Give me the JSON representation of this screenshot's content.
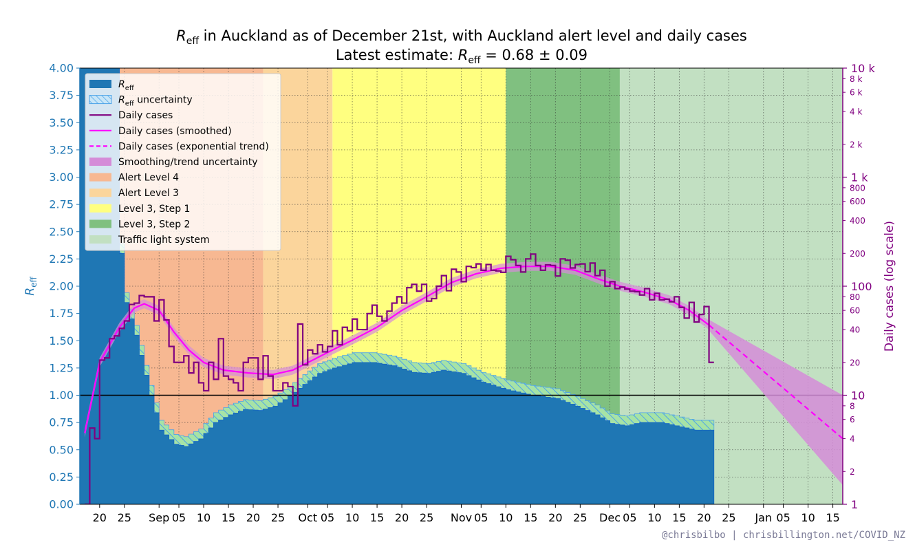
{
  "colors": {
    "reff": "#1f77b4",
    "reff_uncertainty_fill": "#a6e3a6",
    "reff_uncertainty_hatch": "#4da3e8",
    "daily_cases": "#800080",
    "smoothed": "#ff00ff",
    "trend_uncertainty": "#d58cd8",
    "alert4": "#f7b892",
    "alert3": "#fbd59c",
    "step1": "#ffff80",
    "step2": "#80c080",
    "traffic": "#c2e0c2",
    "left_axis": "#1f77b4",
    "right_axis": "#800080"
  },
  "chart_data": {
    "type": "line",
    "title_prefix": "R",
    "title_sub": "eff",
    "title_rest": " in Auckland as of December 21st, with Auckland alert level and daily cases",
    "subtitle_prefix": "Latest estimate: ",
    "subtitle_r": "R",
    "subtitle_sub": "eff",
    "subtitle_rest": " = 0.68 ± 0.09",
    "ylabel_left_main": "R",
    "ylabel_left_sub": "eff",
    "ylabel_right": "Daily cases (log scale)",
    "credit": "@chrisbilbo | chrisbillington.net/COVID_NZ",
    "x_range": [
      "2021-08-16",
      "2022-01-17"
    ],
    "ylim_left": [
      0,
      4
    ],
    "ylim_right": [
      1,
      10000
    ],
    "right_scale": "log",
    "grid": "dotted",
    "legend_placement": "top-left",
    "yticks_left": [
      "0.00",
      "0.25",
      "0.50",
      "0.75",
      "1.00",
      "1.25",
      "1.50",
      "1.75",
      "2.00",
      "2.25",
      "2.50",
      "2.75",
      "3.00",
      "3.25",
      "3.50",
      "3.75",
      "4.00"
    ],
    "yticks_right_major": [
      {
        "value": 1,
        "label": "1"
      },
      {
        "value": 10,
        "label": "10"
      },
      {
        "value": 100,
        "label": "100"
      },
      {
        "value": 1000,
        "label": "1 k"
      },
      {
        "value": 10000,
        "label": "10 k"
      }
    ],
    "yticks_right_minor": [
      {
        "value": 2,
        "label": "2"
      },
      {
        "value": 4,
        "label": "4"
      },
      {
        "value": 6,
        "label": "6"
      },
      {
        "value": 8,
        "label": "8"
      },
      {
        "value": 20,
        "label": "20"
      },
      {
        "value": 40,
        "label": "40"
      },
      {
        "value": 60,
        "label": "60"
      },
      {
        "value": 80,
        "label": "80"
      },
      {
        "value": 200,
        "label": "200"
      },
      {
        "value": 400,
        "label": "400"
      },
      {
        "value": 600,
        "label": "600"
      },
      {
        "value": 800,
        "label": "800"
      },
      {
        "value": 2000,
        "label": "2 k"
      },
      {
        "value": 4000,
        "label": "4 k"
      },
      {
        "value": 6000,
        "label": "6 k"
      },
      {
        "value": 8000,
        "label": "8 k"
      }
    ],
    "xticks": [
      {
        "date": "2021-08-20",
        "label": "20"
      },
      {
        "date": "2021-08-25",
        "label": "25"
      },
      {
        "date": "2021-09-01",
        "label": "Sep"
      },
      {
        "date": "2021-09-05",
        "label": "05"
      },
      {
        "date": "2021-09-10",
        "label": "10"
      },
      {
        "date": "2021-09-15",
        "label": "15"
      },
      {
        "date": "2021-09-20",
        "label": "20"
      },
      {
        "date": "2021-09-25",
        "label": "25"
      },
      {
        "date": "2021-10-01",
        "label": "Oct"
      },
      {
        "date": "2021-10-05",
        "label": "05"
      },
      {
        "date": "2021-10-10",
        "label": "10"
      },
      {
        "date": "2021-10-15",
        "label": "15"
      },
      {
        "date": "2021-10-20",
        "label": "20"
      },
      {
        "date": "2021-10-25",
        "label": "25"
      },
      {
        "date": "2021-11-01",
        "label": "Nov"
      },
      {
        "date": "2021-11-05",
        "label": "05"
      },
      {
        "date": "2021-11-10",
        "label": "10"
      },
      {
        "date": "2021-11-15",
        "label": "15"
      },
      {
        "date": "2021-11-20",
        "label": "20"
      },
      {
        "date": "2021-11-25",
        "label": "25"
      },
      {
        "date": "2021-12-01",
        "label": "Dec"
      },
      {
        "date": "2021-12-05",
        "label": "05"
      },
      {
        "date": "2021-12-10",
        "label": "10"
      },
      {
        "date": "2021-12-15",
        "label": "15"
      },
      {
        "date": "2021-12-20",
        "label": "20"
      },
      {
        "date": "2021-12-25",
        "label": "25"
      },
      {
        "date": "2022-01-01",
        "label": "Jan"
      },
      {
        "date": "2022-01-05",
        "label": "05"
      },
      {
        "date": "2022-01-10",
        "label": "10"
      },
      {
        "date": "2022-01-15",
        "label": "15"
      }
    ],
    "alert_periods": [
      {
        "name": "Alert Level 4",
        "start": "2021-08-17",
        "end": "2021-09-22",
        "color_key": "alert4"
      },
      {
        "name": "Alert Level 3",
        "start": "2021-09-22",
        "end": "2021-10-06",
        "color_key": "alert3"
      },
      {
        "name": "Level 3, Step 1",
        "start": "2021-10-06",
        "end": "2021-11-10",
        "color_key": "step1"
      },
      {
        "name": "Level 3, Step 2",
        "start": "2021-11-10",
        "end": "2021-12-03",
        "color_key": "step2"
      },
      {
        "name": "Traffic light system",
        "start": "2021-12-03",
        "end": "2022-01-17",
        "color_key": "traffic"
      }
    ],
    "reff_anchors": [
      [
        "2021-08-16",
        4.0
      ],
      [
        "2021-08-23",
        4.0
      ],
      [
        "2021-08-24",
        2.3
      ],
      [
        "2021-08-25",
        1.85
      ],
      [
        "2021-08-27",
        1.55
      ],
      [
        "2021-08-30",
        1.0
      ],
      [
        "2021-09-01",
        0.68
      ],
      [
        "2021-09-04",
        0.55
      ],
      [
        "2021-09-06",
        0.53
      ],
      [
        "2021-09-09",
        0.6
      ],
      [
        "2021-09-12",
        0.75
      ],
      [
        "2021-09-15",
        0.82
      ],
      [
        "2021-09-18",
        0.87
      ],
      [
        "2021-09-21",
        0.86
      ],
      [
        "2021-09-24",
        0.9
      ],
      [
        "2021-09-27",
        0.99
      ],
      [
        "2021-09-30",
        1.1
      ],
      [
        "2021-10-03",
        1.2
      ],
      [
        "2021-10-06",
        1.25
      ],
      [
        "2021-10-10",
        1.3
      ],
      [
        "2021-10-14",
        1.3
      ],
      [
        "2021-10-18",
        1.27
      ],
      [
        "2021-10-22",
        1.21
      ],
      [
        "2021-10-25",
        1.2
      ],
      [
        "2021-10-28",
        1.23
      ],
      [
        "2021-11-01",
        1.2
      ],
      [
        "2021-11-05",
        1.12
      ],
      [
        "2021-11-10",
        1.05
      ],
      [
        "2021-11-15",
        1.0
      ],
      [
        "2021-11-20",
        0.97
      ],
      [
        "2021-11-24",
        0.9
      ],
      [
        "2021-11-28",
        0.82
      ],
      [
        "2021-12-01",
        0.74
      ],
      [
        "2021-12-04",
        0.72
      ],
      [
        "2021-12-07",
        0.75
      ],
      [
        "2021-12-11",
        0.75
      ],
      [
        "2021-12-15",
        0.71
      ],
      [
        "2021-12-18",
        0.68
      ],
      [
        "2021-12-21",
        0.68
      ]
    ],
    "reff_upper_offset": 0.09,
    "daily_cases_anchors": [
      [
        "2021-08-17",
        1
      ],
      [
        "2021-08-18",
        5
      ],
      [
        "2021-08-19",
        4
      ],
      [
        "2021-08-20",
        21
      ],
      [
        "2021-08-21",
        22
      ],
      [
        "2021-08-22",
        33
      ],
      [
        "2021-08-23",
        35
      ],
      [
        "2021-08-24",
        41
      ],
      [
        "2021-08-25",
        48
      ],
      [
        "2021-08-26",
        68
      ],
      [
        "2021-08-27",
        70
      ],
      [
        "2021-08-28",
        82
      ],
      [
        "2021-08-29",
        80
      ],
      [
        "2021-08-30",
        80
      ],
      [
        "2021-08-31",
        48
      ],
      [
        "2021-09-01",
        75
      ],
      [
        "2021-09-02",
        49
      ],
      [
        "2021-09-03",
        28
      ],
      [
        "2021-09-04",
        20
      ],
      [
        "2021-09-05",
        20
      ],
      [
        "2021-09-06",
        23
      ],
      [
        "2021-09-07",
        16
      ],
      [
        "2021-09-08",
        20
      ],
      [
        "2021-09-09",
        13
      ],
      [
        "2021-09-10",
        11
      ],
      [
        "2021-09-11",
        20
      ],
      [
        "2021-09-12",
        14
      ],
      [
        "2021-09-13",
        33
      ],
      [
        "2021-09-14",
        15
      ],
      [
        "2021-09-15",
        14
      ],
      [
        "2021-09-16",
        13
      ],
      [
        "2021-09-17",
        11
      ],
      [
        "2021-09-18",
        20
      ],
      [
        "2021-09-19",
        22
      ],
      [
        "2021-09-20",
        22
      ],
      [
        "2021-09-21",
        14
      ],
      [
        "2021-09-22",
        23
      ],
      [
        "2021-09-23",
        15
      ],
      [
        "2021-09-24",
        11
      ],
      [
        "2021-09-25",
        11
      ],
      [
        "2021-09-26",
        13
      ],
      [
        "2021-09-27",
        12
      ],
      [
        "2021-09-28",
        8
      ],
      [
        "2021-09-29",
        45
      ],
      [
        "2021-09-30",
        19
      ],
      [
        "2021-10-01",
        26
      ],
      [
        "2021-10-02",
        24
      ],
      [
        "2021-10-03",
        29
      ],
      [
        "2021-10-04",
        25
      ],
      [
        "2021-10-05",
        28
      ],
      [
        "2021-10-06",
        39
      ],
      [
        "2021-10-07",
        29
      ],
      [
        "2021-10-08",
        42
      ],
      [
        "2021-10-09",
        39
      ],
      [
        "2021-10-10",
        50
      ],
      [
        "2021-10-11",
        40
      ],
      [
        "2021-10-12",
        40
      ],
      [
        "2021-10-13",
        56
      ],
      [
        "2021-10-14",
        67
      ],
      [
        "2021-10-15",
        53
      ],
      [
        "2021-10-16",
        48
      ],
      [
        "2021-10-17",
        59
      ],
      [
        "2021-10-18",
        70
      ],
      [
        "2021-10-19",
        80
      ],
      [
        "2021-10-20",
        70
      ],
      [
        "2021-10-21",
        97
      ],
      [
        "2021-10-22",
        104
      ],
      [
        "2021-10-23",
        90
      ],
      [
        "2021-10-24",
        104
      ],
      [
        "2021-10-25",
        73
      ],
      [
        "2021-10-26",
        77
      ],
      [
        "2021-10-27",
        100
      ],
      [
        "2021-10-28",
        125
      ],
      [
        "2021-10-29",
        91
      ],
      [
        "2021-10-30",
        143
      ],
      [
        "2021-10-31",
        135
      ],
      [
        "2021-11-01",
        110
      ],
      [
        "2021-11-02",
        152
      ],
      [
        "2021-11-03",
        148
      ],
      [
        "2021-11-04",
        160
      ],
      [
        "2021-11-05",
        140
      ],
      [
        "2021-11-06",
        158
      ],
      [
        "2021-11-07",
        140
      ],
      [
        "2021-11-08",
        138
      ],
      [
        "2021-11-09",
        134
      ],
      [
        "2021-11-10",
        188
      ],
      [
        "2021-11-11",
        175
      ],
      [
        "2021-11-12",
        155
      ],
      [
        "2021-11-13",
        135
      ],
      [
        "2021-11-14",
        178
      ],
      [
        "2021-11-15",
        197
      ],
      [
        "2021-11-16",
        155
      ],
      [
        "2021-11-17",
        140
      ],
      [
        "2021-11-18",
        157
      ],
      [
        "2021-11-19",
        155
      ],
      [
        "2021-11-20",
        124
      ],
      [
        "2021-11-21",
        178
      ],
      [
        "2021-11-22",
        173
      ],
      [
        "2021-11-23",
        147
      ],
      [
        "2021-11-24",
        158
      ],
      [
        "2021-11-25",
        160
      ],
      [
        "2021-11-26",
        136
      ],
      [
        "2021-11-27",
        163
      ],
      [
        "2021-11-28",
        125
      ],
      [
        "2021-11-29",
        140
      ],
      [
        "2021-11-30",
        100
      ],
      [
        "2021-12-01",
        110
      ],
      [
        "2021-12-02",
        95
      ],
      [
        "2021-12-03",
        98
      ],
      [
        "2021-12-04",
        94
      ],
      [
        "2021-12-05",
        90
      ],
      [
        "2021-12-06",
        89
      ],
      [
        "2021-12-07",
        83
      ],
      [
        "2021-12-08",
        95
      ],
      [
        "2021-12-09",
        75
      ],
      [
        "2021-12-10",
        86
      ],
      [
        "2021-12-11",
        75
      ],
      [
        "2021-12-12",
        76
      ],
      [
        "2021-12-13",
        72
      ],
      [
        "2021-12-14",
        80
      ],
      [
        "2021-12-15",
        64
      ],
      [
        "2021-12-16",
        51
      ],
      [
        "2021-12-17",
        71
      ],
      [
        "2021-12-18",
        47
      ],
      [
        "2021-12-19",
        55
      ],
      [
        "2021-12-20",
        65
      ],
      [
        "2021-12-21",
        20
      ]
    ],
    "smoothed_anchors": [
      [
        "2021-08-17",
        4.5
      ],
      [
        "2021-08-20",
        20
      ],
      [
        "2021-08-24",
        42
      ],
      [
        "2021-08-27",
        63
      ],
      [
        "2021-08-29",
        69
      ],
      [
        "2021-09-01",
        60
      ],
      [
        "2021-09-04",
        38
      ],
      [
        "2021-09-07",
        26
      ],
      [
        "2021-09-10",
        20
      ],
      [
        "2021-09-14",
        17
      ],
      [
        "2021-09-19",
        16
      ],
      [
        "2021-09-24",
        15.5
      ],
      [
        "2021-09-28",
        17
      ],
      [
        "2021-10-02",
        21
      ],
      [
        "2021-10-06",
        26
      ],
      [
        "2021-10-10",
        32
      ],
      [
        "2021-10-15",
        42
      ],
      [
        "2021-10-20",
        60
      ],
      [
        "2021-10-25",
        80
      ],
      [
        "2021-10-30",
        108
      ],
      [
        "2021-11-04",
        130
      ],
      [
        "2021-11-09",
        146
      ],
      [
        "2021-11-14",
        152
      ],
      [
        "2021-11-19",
        152
      ],
      [
        "2021-11-24",
        140
      ],
      [
        "2021-11-29",
        115
      ],
      [
        "2021-12-03",
        100
      ],
      [
        "2021-12-08",
        88
      ],
      [
        "2021-12-13",
        75
      ],
      [
        "2021-12-17",
        60
      ],
      [
        "2021-12-21",
        44
      ]
    ],
    "trend_anchors": [
      [
        "2021-12-21",
        44
      ],
      [
        "2022-01-17",
        4
      ]
    ],
    "trend_uncertainty_end": [
      1.5,
      10
    ]
  },
  "legend": [
    {
      "key": "reff",
      "label_main": "R",
      "label_sub": "eff",
      "label_rest": ""
    },
    {
      "key": "reff_unc",
      "label_main": "R",
      "label_sub": "eff",
      "label_rest": " uncertainty"
    },
    {
      "key": "cases",
      "label_main": "Daily cases",
      "label_sub": "",
      "label_rest": ""
    },
    {
      "key": "smoothed",
      "label_main": "Daily cases (smoothed)",
      "label_sub": "",
      "label_rest": ""
    },
    {
      "key": "trend",
      "label_main": "Daily cases (exponential trend)",
      "label_sub": "",
      "label_rest": ""
    },
    {
      "key": "trend_unc",
      "label_main": "Smoothing/trend uncertainty",
      "label_sub": "",
      "label_rest": ""
    },
    {
      "key": "alert4",
      "label_main": "Alert Level 4",
      "label_sub": "",
      "label_rest": ""
    },
    {
      "key": "alert3",
      "label_main": "Alert Level 3",
      "label_sub": "",
      "label_rest": ""
    },
    {
      "key": "step1",
      "label_main": "Level 3, Step 1",
      "label_sub": "",
      "label_rest": ""
    },
    {
      "key": "step2",
      "label_main": "Level 3, Step 2",
      "label_sub": "",
      "label_rest": ""
    },
    {
      "key": "traffic",
      "label_main": "Traffic light system",
      "label_sub": "",
      "label_rest": ""
    }
  ]
}
